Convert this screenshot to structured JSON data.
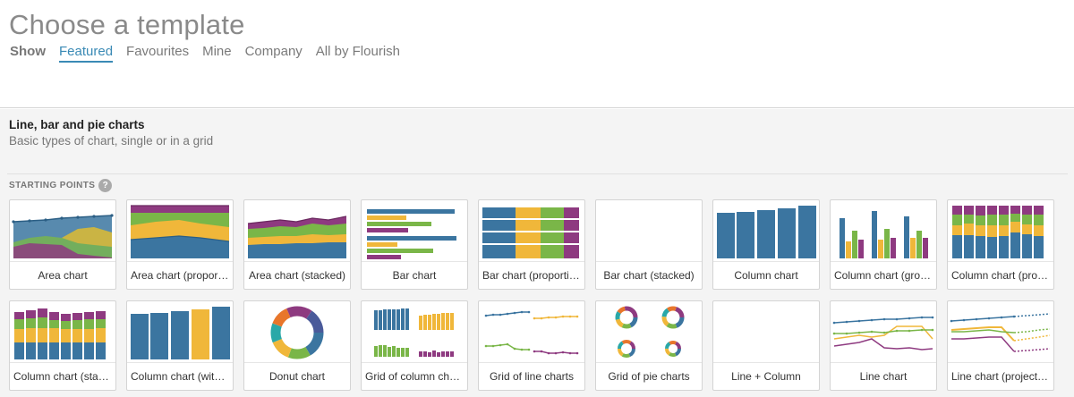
{
  "header": {
    "title": "Choose a template",
    "filters": {
      "show_label": "Show",
      "items": [
        "Featured",
        "Favourites",
        "Mine",
        "Company",
        "All by Flourish"
      ],
      "active": "Featured"
    }
  },
  "section": {
    "title": "Line, bar and pie charts",
    "description": "Basic types of chart, single or in a grid",
    "starting_points_label": "STARTING POINTS",
    "help_icon": "?"
  },
  "colors": {
    "blue": "#3b75a0",
    "green": "#7ab648",
    "yellow": "#f0b73a",
    "purple": "#8e3a80",
    "teal": "#2aa8a8",
    "orange": "#e8762b"
  },
  "templates": [
    {
      "label": "Area chart",
      "icon": "area-chart-thumbnail"
    },
    {
      "label": "Area chart (proportional)",
      "display": "Area chart (proporti…",
      "icon": "area-proportional-thumbnail"
    },
    {
      "label": "Area chart (stacked)",
      "icon": "area-stacked-thumbnail"
    },
    {
      "label": "Bar chart",
      "icon": "bar-chart-thumbnail"
    },
    {
      "label": "Bar chart (proportional)",
      "display": "Bar chart (proportio…",
      "icon": "bar-proportional-thumbnail"
    },
    {
      "label": "Bar chart (stacked)",
      "icon": "bar-stacked-thumbnail"
    },
    {
      "label": "Column chart",
      "icon": "column-chart-thumbnail"
    },
    {
      "label": "Column chart (grouped)",
      "display": "Column chart (grou…",
      "icon": "column-grouped-thumbnail"
    },
    {
      "label": "Column chart (proportional)",
      "display": "Column chart (prop…",
      "icon": "column-proportional-thumbnail"
    },
    {
      "label": "Column chart (stacked)",
      "display": "Column chart (stack…",
      "icon": "column-stacked-thumbnail"
    },
    {
      "label": "Column chart (with line)",
      "display": "Column chart (with …",
      "icon": "column-with-line-thumbnail"
    },
    {
      "label": "Donut chart",
      "icon": "donut-chart-thumbnail"
    },
    {
      "label": "Grid of column charts",
      "icon": "grid-column-thumbnail"
    },
    {
      "label": "Grid of line charts",
      "icon": "grid-line-thumbnail"
    },
    {
      "label": "Grid of pie charts",
      "icon": "grid-pie-thumbnail"
    },
    {
      "label": "Line + Column",
      "icon": "line-column-thumbnail"
    },
    {
      "label": "Line chart",
      "icon": "line-chart-thumbnail"
    },
    {
      "label": "Line chart (projected)",
      "icon": "line-projected-thumbnail"
    }
  ]
}
